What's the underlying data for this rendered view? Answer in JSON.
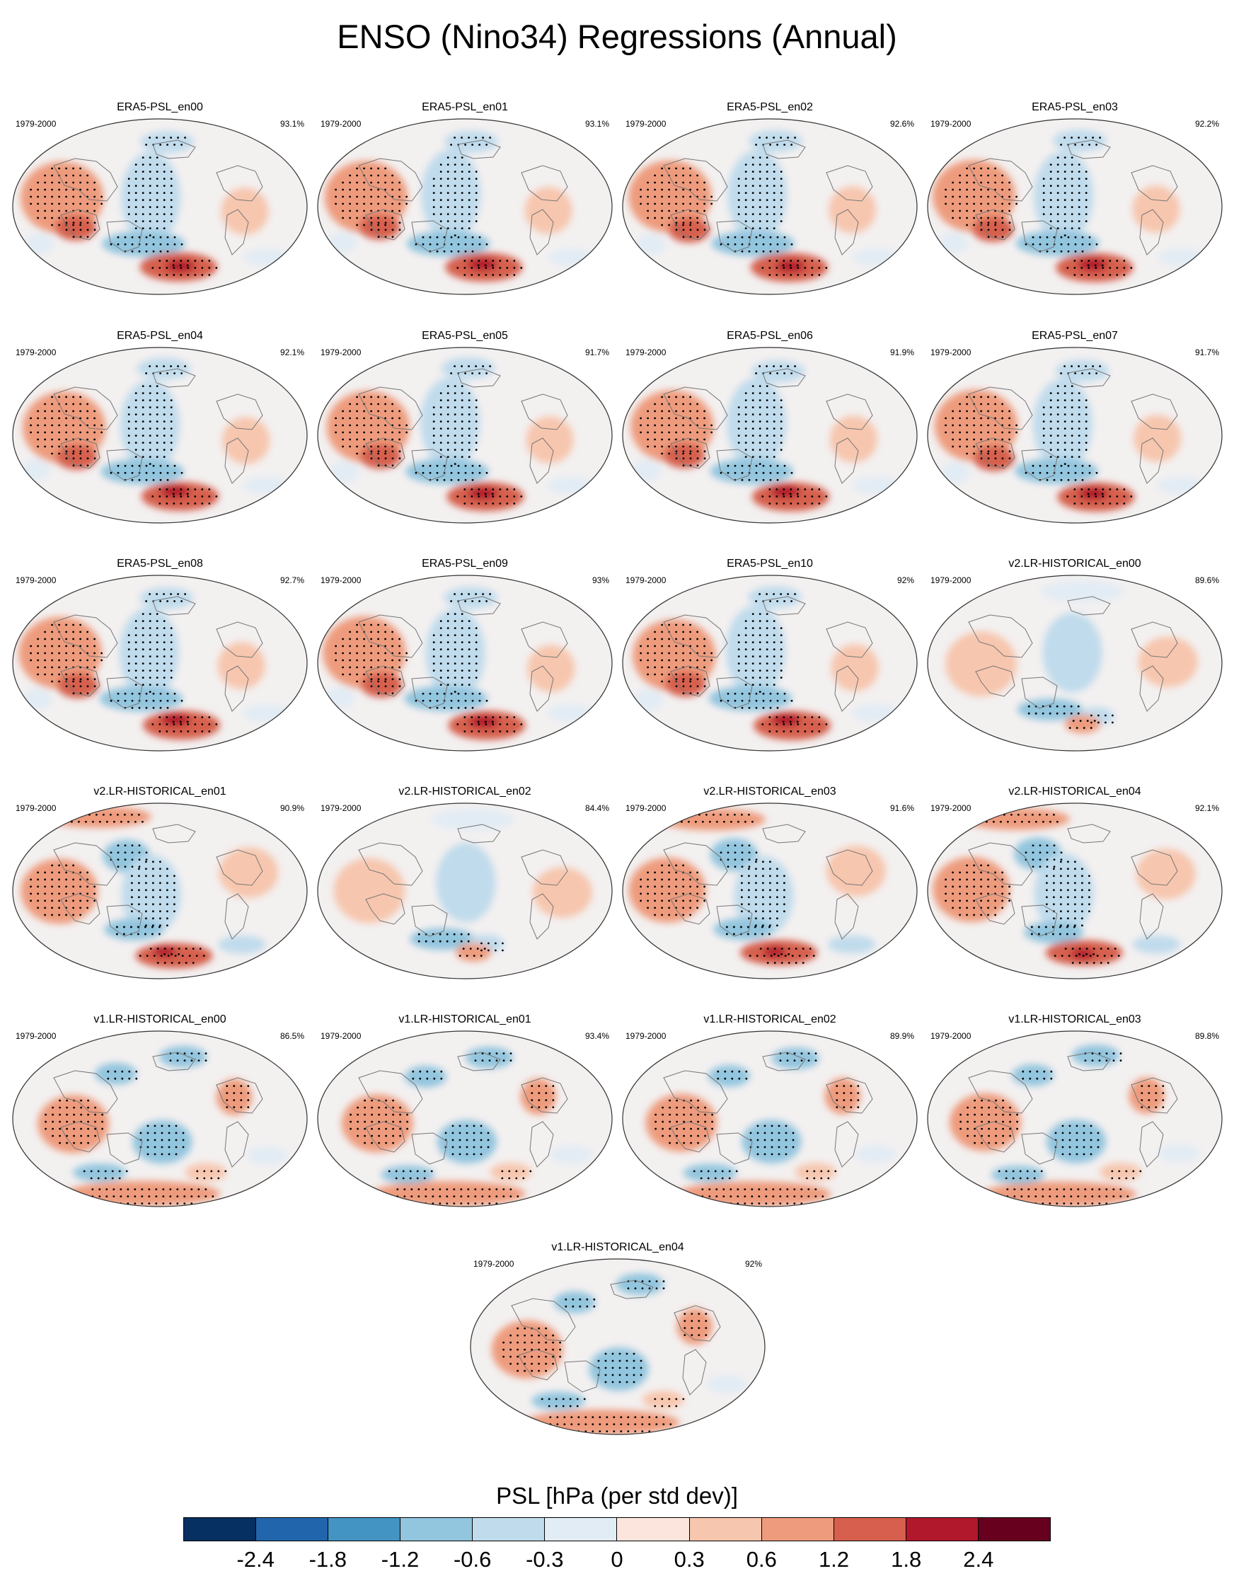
{
  "title": "ENSO (Nino34) Regressions (Annual)",
  "panels": [
    {
      "title": "ERA5-PSL_en00",
      "period": "1979-2000",
      "pct": "93.1%",
      "family": "era",
      "seed": 1
    },
    {
      "title": "ERA5-PSL_en01",
      "period": "1979-2000",
      "pct": "93.1%",
      "family": "era",
      "seed": 2
    },
    {
      "title": "ERA5-PSL_en02",
      "period": "1979-2000",
      "pct": "92.6%",
      "family": "era",
      "seed": 3
    },
    {
      "title": "ERA5-PSL_en03",
      "period": "1979-2000",
      "pct": "92.2%",
      "family": "era",
      "seed": 4
    },
    {
      "title": "ERA5-PSL_en04",
      "period": "1979-2000",
      "pct": "92.1%",
      "family": "era",
      "seed": 5
    },
    {
      "title": "ERA5-PSL_en05",
      "period": "1979-2000",
      "pct": "91.7%",
      "family": "era",
      "seed": 6
    },
    {
      "title": "ERA5-PSL_en06",
      "period": "1979-2000",
      "pct": "91.9%",
      "family": "era",
      "seed": 7
    },
    {
      "title": "ERA5-PSL_en07",
      "period": "1979-2000",
      "pct": "91.7%",
      "family": "era",
      "seed": 8
    },
    {
      "title": "ERA5-PSL_en08",
      "period": "1979-2000",
      "pct": "92.7%",
      "family": "era",
      "seed": 9
    },
    {
      "title": "ERA5-PSL_en09",
      "period": "1979-2000",
      "pct": "93%",
      "family": "era",
      "seed": 10
    },
    {
      "title": "ERA5-PSL_en10",
      "period": "1979-2000",
      "pct": "92%",
      "family": "era",
      "seed": 11
    },
    {
      "title": "v2.LR-HISTORICAL_en00",
      "period": "1979-2000",
      "pct": "89.6%",
      "family": "v2weak",
      "seed": 12
    },
    {
      "title": "v2.LR-HISTORICAL_en01",
      "period": "1979-2000",
      "pct": "90.9%",
      "family": "v2",
      "seed": 13
    },
    {
      "title": "v2.LR-HISTORICAL_en02",
      "period": "1979-2000",
      "pct": "84.4%",
      "family": "v2weak",
      "seed": 14
    },
    {
      "title": "v2.LR-HISTORICAL_en03",
      "period": "1979-2000",
      "pct": "91.6%",
      "family": "v2",
      "seed": 15
    },
    {
      "title": "v2.LR-HISTORICAL_en04",
      "period": "1979-2000",
      "pct": "92.1%",
      "family": "v2",
      "seed": 16
    },
    {
      "title": "v1.LR-HISTORICAL_en00",
      "period": "1979-2000",
      "pct": "86.5%",
      "family": "v1",
      "seed": 17
    },
    {
      "title": "v1.LR-HISTORICAL_en01",
      "period": "1979-2000",
      "pct": "93.4%",
      "family": "v1",
      "seed": 18
    },
    {
      "title": "v1.LR-HISTORICAL_en02",
      "period": "1979-2000",
      "pct": "89.9%",
      "family": "v1",
      "seed": 19
    },
    {
      "title": "v1.LR-HISTORICAL_en03",
      "period": "1979-2000",
      "pct": "89.8%",
      "family": "v1",
      "seed": 20
    },
    {
      "title": "v1.LR-HISTORICAL_en04",
      "period": "1979-2000",
      "pct": "92%",
      "family": "v1",
      "seed": 21
    }
  ],
  "colorbar": {
    "title": "PSL [hPa (per std dev)]",
    "colors": [
      "#053061",
      "#2166ac",
      "#4393c3",
      "#92c5de",
      "#c0dbec",
      "#e2ecf4",
      "#fbe5dc",
      "#f7c6ae",
      "#ee9b7d",
      "#d6604d",
      "#b2182b",
      "#67001f"
    ],
    "ticks": [
      "-2.4",
      "-1.8",
      "-1.2",
      "-0.6",
      "-0.3",
      "0",
      "0.3",
      "0.6",
      "1.2",
      "1.8",
      "2.4"
    ]
  }
}
